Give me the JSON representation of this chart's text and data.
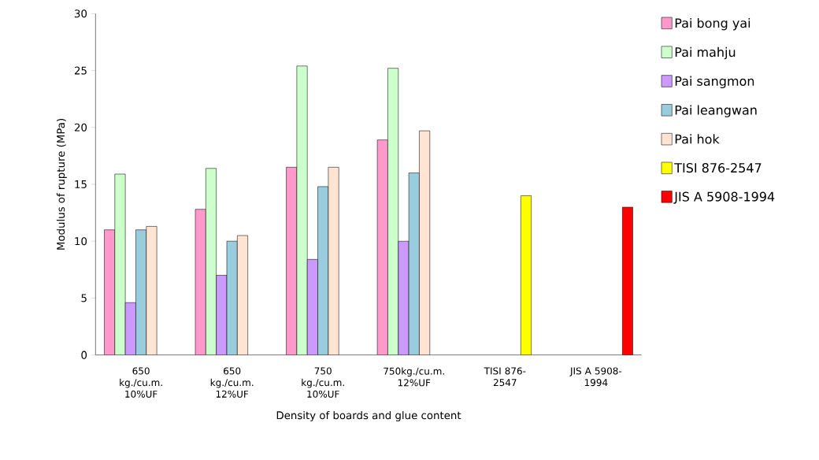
{
  "chart_data": {
    "type": "bar",
    "xlabel": "Density of boards and glue content",
    "ylabel": "Modulus of rupture (MPa)",
    "categories": [
      "650 kg./cu.m. 10%UF",
      "650 kg./cu.m. 12%UF",
      "750 kg./cu.m. 10%UF",
      "750kg./cu.m. 12%UF",
      "TISI 876-2547",
      "JIS A 5908-1994"
    ],
    "series": [
      {
        "name": "Pai bong yai",
        "color": "#ff99cc",
        "values": [
          11,
          12.8,
          16.5,
          18.9,
          null,
          null
        ]
      },
      {
        "name": "Pai mahju",
        "color": "#ccffcc",
        "values": [
          15.9,
          16.4,
          25.4,
          25.2,
          null,
          null
        ]
      },
      {
        "name": "Pai sangmon",
        "color": "#cc99ff",
        "values": [
          4.6,
          7,
          8.4,
          10,
          null,
          null
        ]
      },
      {
        "name": "Pai leangwan",
        "color": "#99ccdd",
        "values": [
          11,
          10,
          14.8,
          16,
          null,
          null
        ]
      },
      {
        "name": "Pai hok",
        "color": "#ffe4d4",
        "values": [
          11.3,
          10.5,
          16.5,
          19.7,
          null,
          null
        ]
      },
      {
        "name": "TISI 876-2547",
        "color": "#ffff00",
        "values": [
          null,
          null,
          null,
          null,
          14,
          null
        ]
      },
      {
        "name": "JIS A 5908-1994",
        "color": "#ff0000",
        "values": [
          null,
          null,
          null,
          null,
          null,
          13
        ]
      }
    ],
    "ylim": [
      0,
      30
    ],
    "yticks": [
      0,
      5,
      10,
      15,
      20,
      25,
      30
    ],
    "legend": "right"
  }
}
